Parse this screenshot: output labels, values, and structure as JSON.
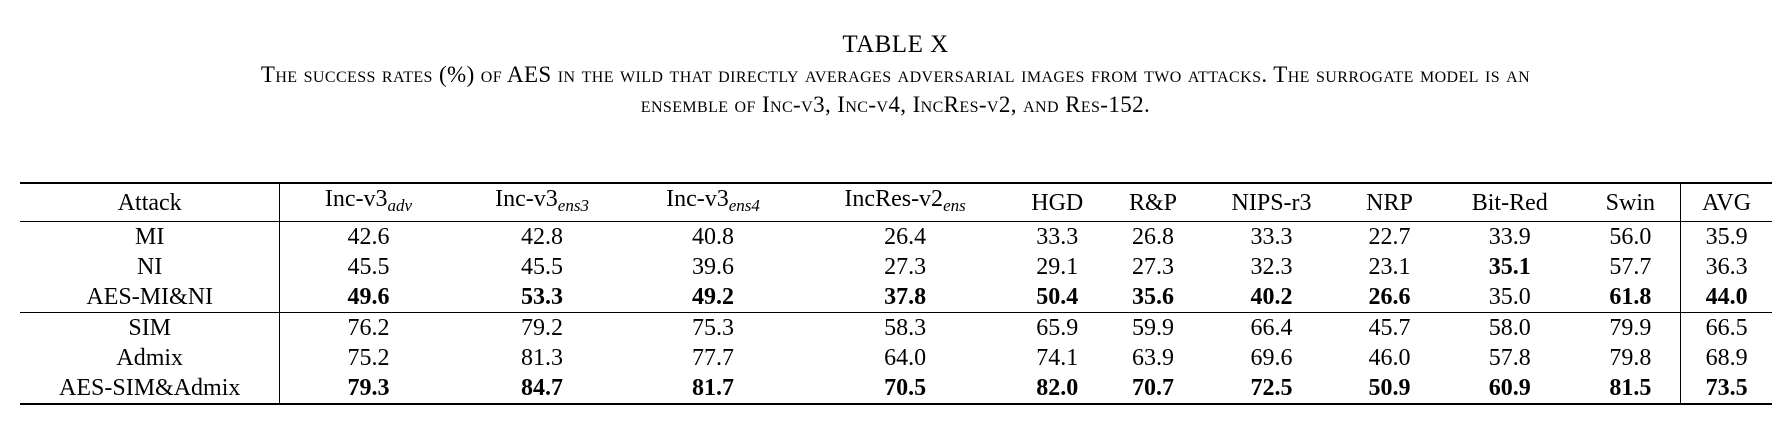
{
  "table_label": "TABLE X",
  "caption_line1": "The success rates (%) of AES in the wild that directly averages adversarial images from two attacks. The surrogate model is an",
  "caption_line2": "ensemble of Inc-v3, Inc-v4, IncRes-v2, and Res-152.",
  "headers": [
    {
      "base": "Attack",
      "sub": ""
    },
    {
      "base": "Inc-v3",
      "sub": "adv"
    },
    {
      "base": "Inc-v3",
      "sub": "ens3"
    },
    {
      "base": "Inc-v3",
      "sub": "ens4"
    },
    {
      "base": "IncRes-v2",
      "sub": "ens"
    },
    {
      "base": "HGD",
      "sub": ""
    },
    {
      "base": "R&P",
      "sub": ""
    },
    {
      "base": "NIPS-r3",
      "sub": ""
    },
    {
      "base": "NRP",
      "sub": ""
    },
    {
      "base": "Bit-Red",
      "sub": ""
    },
    {
      "base": "Swin",
      "sub": ""
    },
    {
      "base": "AVG",
      "sub": ""
    }
  ],
  "groups": [
    [
      {
        "attack": "MI",
        "values": [
          "42.6",
          "42.8",
          "40.8",
          "26.4",
          "33.3",
          "26.8",
          "33.3",
          "22.7",
          "33.9",
          "56.0",
          "35.9"
        ],
        "bold": []
      },
      {
        "attack": "NI",
        "values": [
          "45.5",
          "45.5",
          "39.6",
          "27.3",
          "29.1",
          "27.3",
          "32.3",
          "23.1",
          "35.1",
          "57.7",
          "36.3"
        ],
        "bold": [
          8
        ]
      },
      {
        "attack": "AES-MI&NI",
        "values": [
          "49.6",
          "53.3",
          "49.2",
          "37.8",
          "50.4",
          "35.6",
          "40.2",
          "26.6",
          "35.0",
          "61.8",
          "44.0"
        ],
        "bold": [
          0,
          1,
          2,
          3,
          4,
          5,
          6,
          7,
          9,
          10
        ]
      }
    ],
    [
      {
        "attack": "SIM",
        "values": [
          "76.2",
          "79.2",
          "75.3",
          "58.3",
          "65.9",
          "59.9",
          "66.4",
          "45.7",
          "58.0",
          "79.9",
          "66.5"
        ],
        "bold": []
      },
      {
        "attack": "Admix",
        "values": [
          "75.2",
          "81.3",
          "77.7",
          "64.0",
          "74.1",
          "63.9",
          "69.6",
          "46.0",
          "57.8",
          "79.8",
          "68.9"
        ],
        "bold": []
      },
      {
        "attack": "AES-SIM&Admix",
        "values": [
          "79.3",
          "84.7",
          "81.7",
          "70.5",
          "82.0",
          "70.7",
          "72.5",
          "50.9",
          "60.9",
          "81.5",
          "73.5"
        ],
        "bold": [
          0,
          1,
          2,
          3,
          4,
          5,
          6,
          7,
          8,
          9,
          10
        ]
      }
    ]
  ]
}
